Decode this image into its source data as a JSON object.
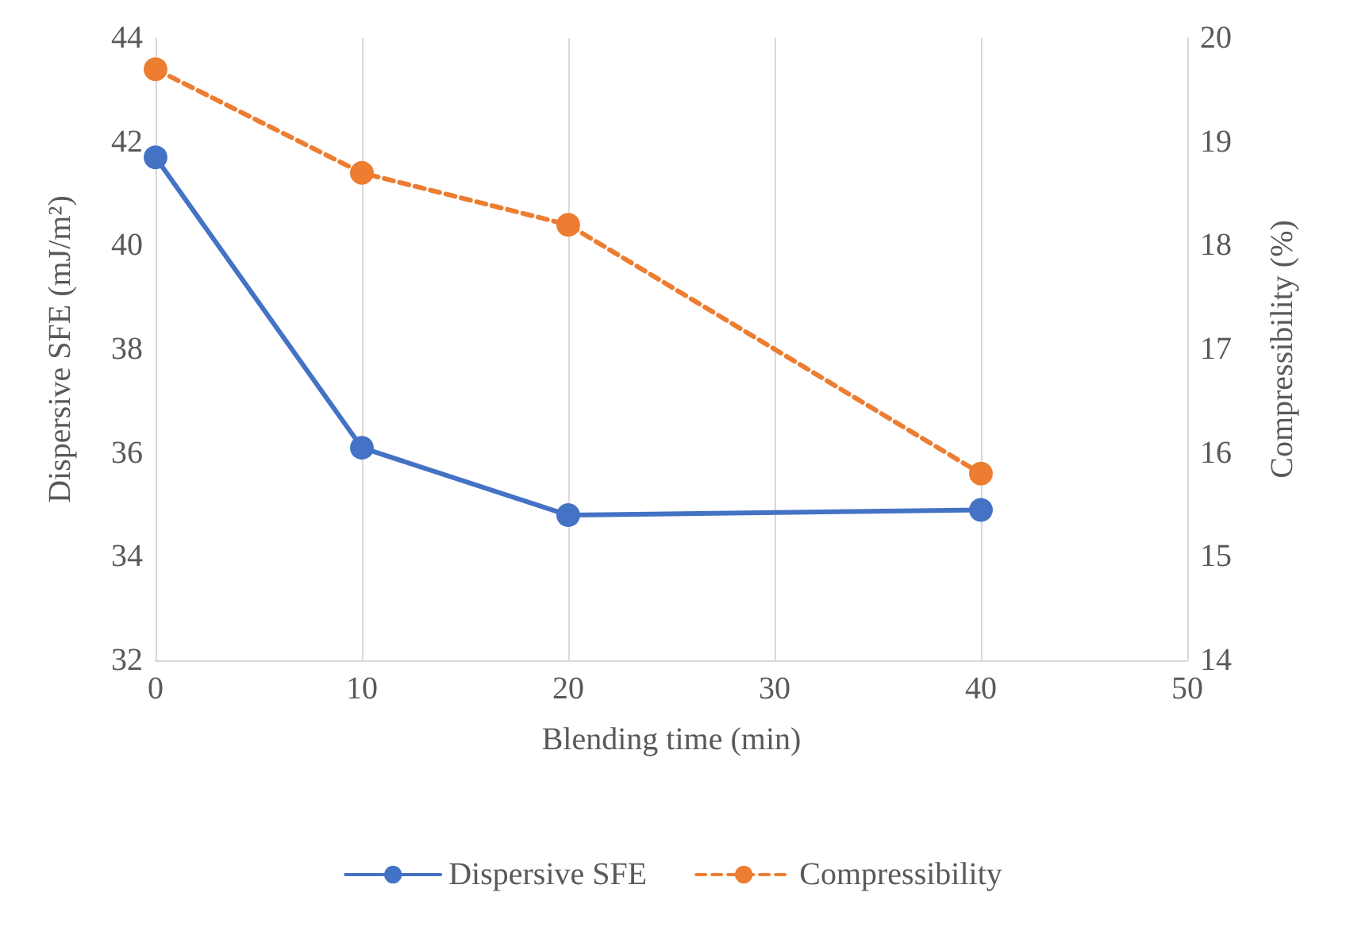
{
  "chart_data": {
    "type": "line",
    "xlabel": "Blending time (min)",
    "ylabel": "Dispersive SFE (mJ/m²)",
    "y2label": "Compressibility (%)",
    "x": [
      0,
      10,
      20,
      40
    ],
    "series": [
      {
        "name": "Dispersive SFE",
        "color": "#4472c4",
        "values": [
          41.7,
          36.1,
          34.8,
          34.9
        ],
        "line_style": "solid"
      },
      {
        "name": "Compressibility",
        "color": "#ed7d31",
        "values": [
          19.7,
          18.7,
          18.2,
          15.8
        ],
        "axis": "y2",
        "line_style": "dashed"
      }
    ],
    "xlim": [
      0,
      50
    ],
    "xticks": [
      0,
      10,
      20,
      30,
      40,
      50
    ],
    "ylim": [
      32,
      44
    ],
    "yticks": [
      32,
      34,
      36,
      38,
      40,
      42,
      44
    ],
    "y2lim": [
      14,
      20
    ],
    "y2ticks": [
      14,
      15,
      16,
      17,
      18,
      19,
      20
    ],
    "grid": "x",
    "legend": "bottom",
    "marker": "circle"
  }
}
